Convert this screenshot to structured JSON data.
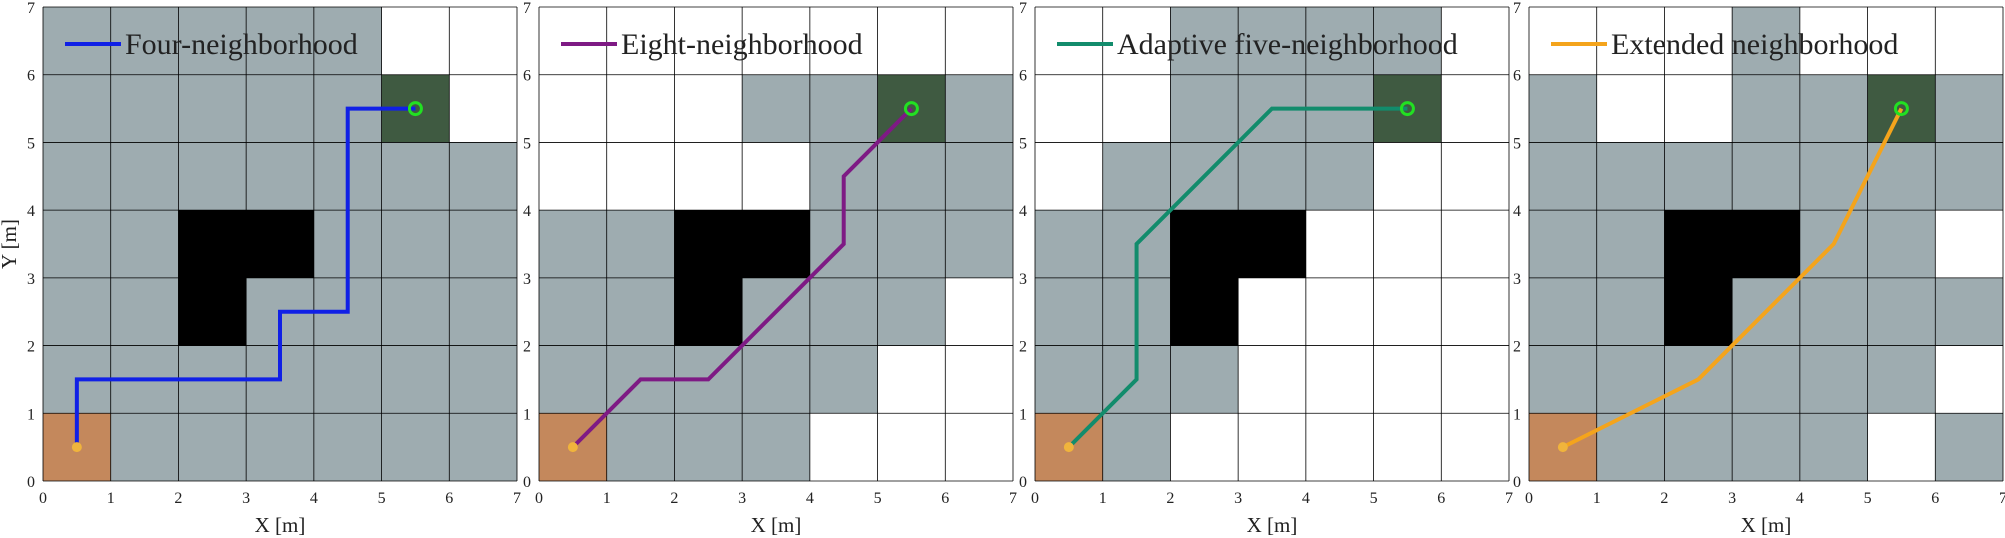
{
  "colors": {
    "explored": "#9eacb0",
    "free": "#ffffff",
    "obstacle": "#000000",
    "start": "#c4885c",
    "goal": "#3f5a41",
    "grid": "#000000",
    "start_marker": "#f0b43c",
    "goal_marker": "#22e022"
  },
  "chart_data": [
    {
      "type": "line",
      "xlabel": "X [m]",
      "ylabel": "Y [m]",
      "xlim": [
        0,
        7
      ],
      "ylim": [
        0,
        7
      ],
      "xticks": [
        0,
        1,
        2,
        3,
        4,
        5,
        6,
        7
      ],
      "yticks": [
        0,
        1,
        2,
        3,
        4,
        5,
        6,
        7
      ],
      "grid": true,
      "legend_position": "top-left",
      "start": [
        0.5,
        0.5
      ],
      "goal": [
        5.5,
        5.5
      ],
      "obstacles": [
        [
          2,
          3
        ],
        [
          3,
          3
        ],
        [
          2,
          2
        ]
      ],
      "explored_cells": [
        [
          0,
          0
        ],
        [
          1,
          0
        ],
        [
          2,
          0
        ],
        [
          3,
          0
        ],
        [
          4,
          0
        ],
        [
          5,
          0
        ],
        [
          6,
          0
        ],
        [
          0,
          1
        ],
        [
          1,
          1
        ],
        [
          2,
          1
        ],
        [
          3,
          1
        ],
        [
          4,
          1
        ],
        [
          5,
          1
        ],
        [
          6,
          1
        ],
        [
          0,
          2
        ],
        [
          1,
          2
        ],
        [
          3,
          2
        ],
        [
          4,
          2
        ],
        [
          5,
          2
        ],
        [
          6,
          2
        ],
        [
          0,
          3
        ],
        [
          1,
          3
        ],
        [
          4,
          3
        ],
        [
          5,
          3
        ],
        [
          6,
          3
        ],
        [
          0,
          4
        ],
        [
          1,
          4
        ],
        [
          2,
          4
        ],
        [
          3,
          4
        ],
        [
          4,
          4
        ],
        [
          5,
          4
        ],
        [
          6,
          4
        ],
        [
          0,
          5
        ],
        [
          1,
          5
        ],
        [
          2,
          5
        ],
        [
          3,
          5
        ],
        [
          4,
          5
        ],
        [
          5,
          5
        ],
        [
          0,
          6
        ],
        [
          1,
          6
        ],
        [
          2,
          6
        ],
        [
          3,
          6
        ],
        [
          4,
          6
        ]
      ],
      "series": [
        {
          "name": "Four-neighborhood",
          "color": "#1020e6",
          "x": [
            0.5,
            0.5,
            3.5,
            3.5,
            4.5,
            4.5,
            5.5
          ],
          "y": [
            0.5,
            1.5,
            1.5,
            2.5,
            2.5,
            5.5,
            5.5
          ]
        }
      ]
    },
    {
      "type": "line",
      "xlabel": "X [m]",
      "ylabel": "",
      "xlim": [
        0,
        7
      ],
      "ylim": [
        0,
        7
      ],
      "xticks": [
        0,
        1,
        2,
        3,
        4,
        5,
        6,
        7
      ],
      "yticks": [
        0,
        1,
        2,
        3,
        4,
        5,
        6,
        7
      ],
      "grid": true,
      "legend_position": "top-left",
      "start": [
        0.5,
        0.5
      ],
      "goal": [
        5.5,
        5.5
      ],
      "obstacles": [
        [
          2,
          3
        ],
        [
          3,
          3
        ],
        [
          2,
          2
        ]
      ],
      "explored_cells": [
        [
          0,
          0
        ],
        [
          1,
          0
        ],
        [
          2,
          0
        ],
        [
          3,
          0
        ],
        [
          0,
          1
        ],
        [
          1,
          1
        ],
        [
          2,
          1
        ],
        [
          3,
          1
        ],
        [
          4,
          1
        ],
        [
          0,
          2
        ],
        [
          1,
          2
        ],
        [
          3,
          2
        ],
        [
          4,
          2
        ],
        [
          5,
          2
        ],
        [
          0,
          3
        ],
        [
          1,
          3
        ],
        [
          4,
          3
        ],
        [
          5,
          3
        ],
        [
          6,
          3
        ],
        [
          4,
          4
        ],
        [
          5,
          4
        ],
        [
          6,
          4
        ],
        [
          3,
          5
        ],
        [
          4,
          5
        ],
        [
          5,
          5
        ],
        [
          6,
          5
        ]
      ],
      "series": [
        {
          "name": "Eight-neighborhood",
          "color": "#7e1a84",
          "x": [
            0.5,
            1.5,
            2.5,
            4.5,
            4.5,
            5.5
          ],
          "y": [
            0.5,
            1.5,
            1.5,
            3.5,
            4.5,
            5.5
          ]
        }
      ]
    },
    {
      "type": "line",
      "xlabel": "X [m]",
      "ylabel": "",
      "xlim": [
        0,
        7
      ],
      "ylim": [
        0,
        7
      ],
      "xticks": [
        0,
        1,
        2,
        3,
        4,
        5,
        6,
        7
      ],
      "yticks": [
        0,
        1,
        2,
        3,
        4,
        5,
        6,
        7
      ],
      "grid": true,
      "legend_position": "top-left",
      "start": [
        0.5,
        0.5
      ],
      "goal": [
        5.5,
        5.5
      ],
      "obstacles": [
        [
          2,
          3
        ],
        [
          3,
          3
        ],
        [
          2,
          2
        ]
      ],
      "explored_cells": [
        [
          0,
          0
        ],
        [
          1,
          0
        ],
        [
          0,
          1
        ],
        [
          1,
          1
        ],
        [
          2,
          1
        ],
        [
          0,
          2
        ],
        [
          1,
          2
        ],
        [
          0,
          3
        ],
        [
          1,
          3
        ],
        [
          1,
          4
        ],
        [
          2,
          4
        ],
        [
          3,
          4
        ],
        [
          4,
          4
        ],
        [
          2,
          5
        ],
        [
          3,
          5
        ],
        [
          4,
          5
        ],
        [
          5,
          5
        ],
        [
          2,
          6
        ],
        [
          3,
          6
        ],
        [
          4,
          6
        ],
        [
          5,
          6
        ]
      ],
      "series": [
        {
          "name": "Adaptive five-neighborhood",
          "color": "#128c6c",
          "x": [
            0.5,
            1.5,
            1.5,
            3.5,
            5.5
          ],
          "y": [
            0.5,
            1.5,
            3.5,
            5.5,
            5.5
          ]
        }
      ]
    },
    {
      "type": "line",
      "xlabel": "X [m]",
      "ylabel": "",
      "xlim": [
        0,
        7
      ],
      "ylim": [
        0,
        7
      ],
      "xticks": [
        0,
        1,
        2,
        3,
        4,
        5,
        6,
        7
      ],
      "yticks": [
        0,
        1,
        2,
        3,
        4,
        5,
        6,
        7
      ],
      "grid": true,
      "legend_position": "top-left",
      "start": [
        0.5,
        0.5
      ],
      "goal": [
        5.5,
        5.5
      ],
      "obstacles": [
        [
          2,
          3
        ],
        [
          3,
          3
        ],
        [
          2,
          2
        ]
      ],
      "explored_cells": [
        [
          0,
          0
        ],
        [
          1,
          0
        ],
        [
          2,
          0
        ],
        [
          3,
          0
        ],
        [
          4,
          0
        ],
        [
          6,
          0
        ],
        [
          0,
          1
        ],
        [
          1,
          1
        ],
        [
          2,
          1
        ],
        [
          3,
          1
        ],
        [
          4,
          1
        ],
        [
          5,
          1
        ],
        [
          0,
          2
        ],
        [
          1,
          2
        ],
        [
          3,
          2
        ],
        [
          4,
          2
        ],
        [
          5,
          2
        ],
        [
          6,
          2
        ],
        [
          0,
          3
        ],
        [
          1,
          3
        ],
        [
          4,
          3
        ],
        [
          5,
          3
        ],
        [
          0,
          4
        ],
        [
          1,
          4
        ],
        [
          2,
          4
        ],
        [
          3,
          4
        ],
        [
          4,
          4
        ],
        [
          5,
          4
        ],
        [
          6,
          4
        ],
        [
          0,
          5
        ],
        [
          3,
          5
        ],
        [
          4,
          5
        ],
        [
          5,
          5
        ],
        [
          6,
          5
        ],
        [
          3,
          6
        ]
      ],
      "series": [
        {
          "name": "Extended neighborhood",
          "color": "#f4a41c",
          "x": [
            0.5,
            2.5,
            3.0,
            4.0,
            4.5,
            5.5
          ],
          "y": [
            0.5,
            1.5,
            2.0,
            3.0,
            3.5,
            5.5
          ]
        }
      ]
    }
  ]
}
